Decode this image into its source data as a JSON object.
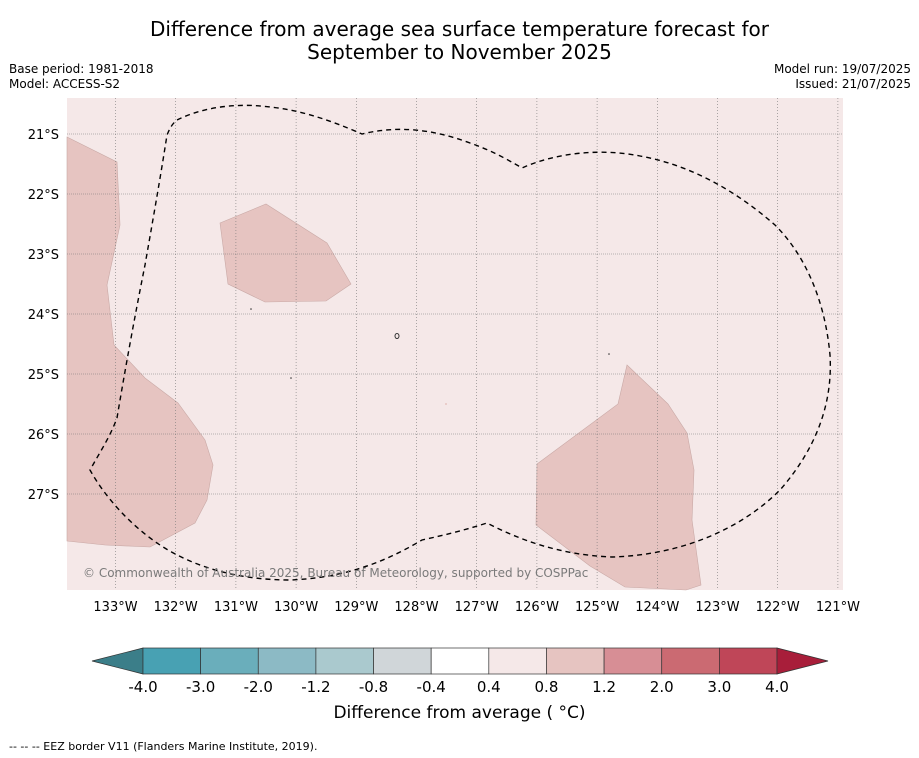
{
  "title_line1": "Difference from average sea surface temperature forecast for",
  "title_line2": "September to November 2025",
  "base_period": "Base period: 1981-2018",
  "model": "Model: ACCESS-S2",
  "model_run": "Model run: 19/07/2025",
  "issued": "Issued: 21/07/2025",
  "copyright": "© Commonwealth of Australia 2025, Bureau of Meteorology, supported by COSPPac",
  "lat_labels": [
    "21°S",
    "22°S",
    "23°S",
    "24°S",
    "25°S",
    "26°S",
    "27°S"
  ],
  "lon_labels": [
    "133°W",
    "132°W",
    "131°W",
    "130°W",
    "129°W",
    "128°W",
    "127°W",
    "126°W",
    "125°W",
    "124°W",
    "123°W",
    "122°W",
    "121°W"
  ],
  "colorbar": {
    "labels": [
      "-4.0",
      "-3.0",
      "-2.0",
      "-1.2",
      "-0.8",
      "-0.4",
      "0.4",
      "0.8",
      "1.2",
      "2.0",
      "3.0",
      "4.0"
    ],
    "colors": [
      "#3b7e89",
      "#48a1b3",
      "#6aaebb",
      "#8cbac5",
      "#aac9ce",
      "#d0d6d9",
      "#ffffff",
      "#f5e8e8",
      "#e6c4c1",
      "#d78e95",
      "#cb6a72",
      "#bf4658",
      "#a81e3a"
    ],
    "title": "Difference from average ( °C)"
  },
  "map_colors": {
    "background": "#f5e8e8",
    "warm_patch": "#e6c4c1"
  },
  "footnote": "--  --  -- EEZ border V11 (Flanders Marine Institute, 2019)."
}
